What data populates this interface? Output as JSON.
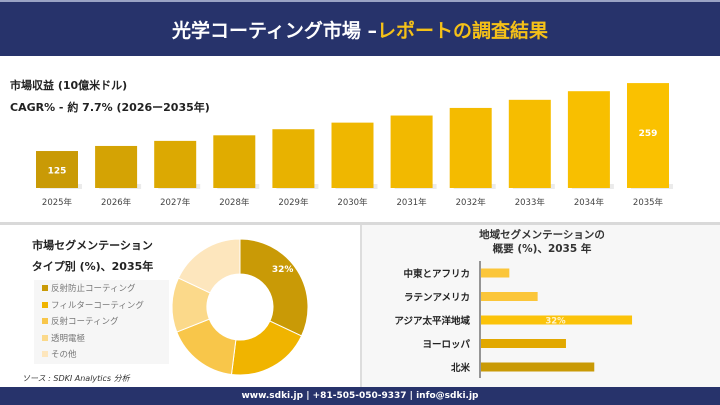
{
  "header": {
    "title_main": "光学コーティング市場 –",
    "title_accent": "レポートの調査結果"
  },
  "summary": {
    "revenue_label": "市場収益 (10億米ドル)",
    "cagr_label": "CAGR% - 約 7.7% (2026ー2035年)"
  },
  "chart_data": [
    {
      "type": "bar",
      "categories": [
        "2025年",
        "2026年",
        "2027年",
        "2028年",
        "2029年",
        "2030年",
        "2031年",
        "2032年",
        "2033年",
        "2034年",
        "2035年"
      ],
      "values": [
        125,
        135,
        145,
        156,
        168,
        181,
        195,
        210,
        226,
        243,
        259
      ],
      "data_labels": {
        "0": "125",
        "10": "259"
      },
      "colors": [
        "#c99a06",
        "#d4a304",
        "#dca902",
        "#e0ac00",
        "#e8b200",
        "#efb700",
        "#f2b900",
        "#f4bb00",
        "#f6bd00",
        "#f8bf00",
        "#fac100"
      ]
    },
    {
      "type": "pie",
      "title": "市場セグメンテーション タイプ別 (%)、2035年",
      "labels": [
        "反射防止コーティング",
        "フィルターコーティング",
        "反射コーティング",
        "透明電極",
        "その他"
      ],
      "values": [
        32,
        20,
        17,
        13,
        18
      ],
      "data_labels": [
        "32%",
        "",
        "",
        "",
        ""
      ],
      "colors": [
        "#c99a06",
        "#f0b400",
        "#f8c64a",
        "#fbd98a",
        "#fde6bd"
      ]
    },
    {
      "type": "bar",
      "orientation": "horizontal",
      "title": "地域セグメンテーションの 概要 (%)、2035 年",
      "categories": [
        "中東とアフリカ",
        "ラテンアメリカ",
        "アジア太平洋地域",
        "ヨーロッパ",
        "北米"
      ],
      "values": [
        6,
        12,
        32,
        18,
        24
      ],
      "data_labels": [
        "",
        "",
        "32%",
        "",
        ""
      ],
      "colors": [
        "#fbc63a",
        "#fbc63a",
        "#fbc30a",
        "#e2a800",
        "#c99a06"
      ]
    }
  ],
  "segment": {
    "title_line1": "市場セグメンテーション",
    "title_line2": "タイプ別 (%)、2035年"
  },
  "region": {
    "title_line1": "地域セグメンテーションの",
    "title_line2": "概要 (%)、2035 年"
  },
  "source": "ソース : SDKI Analytics 分析",
  "footer": "www.sdki.jp | +81-505-050-9337 | info@sdki.jp"
}
